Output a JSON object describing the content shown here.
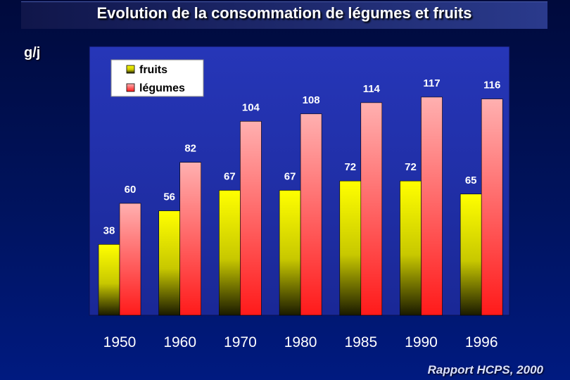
{
  "header": {
    "title": "Evolution de la consommation de légumes et fruits",
    "unit_label": "g/j"
  },
  "footer": {
    "source": "Rapport HCPS, 2000"
  },
  "colors": {
    "fruits_top": "#ffff00",
    "fruits_bottom": "#1a1a00",
    "legumes_top": "#ffb0b0",
    "legumes_bottom": "#ff1a1a",
    "plot_bg": "#1e2ea8",
    "legend_bg": "#ffffff"
  },
  "chart_data": {
    "type": "bar",
    "title": "Evolution de la consommation de légumes et fruits",
    "ylabel": "g/j",
    "xlabel": "",
    "ylim": [
      0,
      130
    ],
    "grid": false,
    "legend_position": "top-left",
    "categories": [
      "1950",
      "1960",
      "1970",
      "1980",
      "1985",
      "1990",
      "1996"
    ],
    "series": [
      {
        "name": "fruits",
        "values": [
          38,
          56,
          67,
          67,
          72,
          72,
          65
        ]
      },
      {
        "name": "légumes",
        "values": [
          60,
          82,
          104,
          108,
          114,
          117,
          116
        ]
      }
    ]
  }
}
